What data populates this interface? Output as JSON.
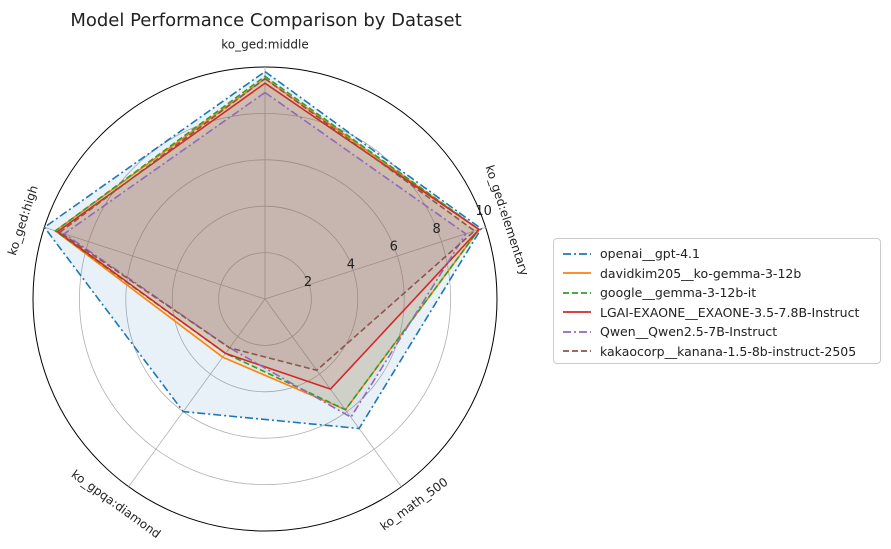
{
  "chart_data": {
    "type": "radar",
    "title": "Model Performance Comparison by Dataset",
    "axes": [
      "ko_ged:middle",
      "ko_ged:elementary",
      "ko_math_500",
      "ko_gpqa:diamond",
      "ko_ged:high"
    ],
    "rlim": [
      0,
      10
    ],
    "rticks": [
      2,
      4,
      6,
      8,
      10
    ],
    "grid": true,
    "legend_position": "right",
    "series": [
      {
        "name": "openai__gpt-4.1",
        "values": [
          9.8,
          9.8,
          6.9,
          6.0,
          10.0
        ],
        "color": "#1f77b4",
        "dash": "dashdot",
        "fill": true
      },
      {
        "name": "davidkim205__ko-gemma-3-12b",
        "values": [
          9.5,
          9.7,
          5.9,
          3.1,
          9.5
        ],
        "color": "#ff7f0e",
        "dash": "solid",
        "fill": true
      },
      {
        "name": "google__gemma-3-12b-it",
        "values": [
          9.6,
          9.7,
          5.9,
          2.9,
          9.5
        ],
        "color": "#2ca02c",
        "dash": "dashed",
        "fill": true
      },
      {
        "name": "LGAI-EXAONE__EXAONE-3.5-7.8B-Instruct",
        "values": [
          9.3,
          9.7,
          4.8,
          2.9,
          9.4
        ],
        "color": "#d62728",
        "dash": "solid",
        "fill": true
      },
      {
        "name": "Qwen__Qwen2.5-7B-Instruct",
        "values": [
          8.9,
          9.1,
          6.3,
          2.6,
          9.1
        ],
        "color": "#9467bd",
        "dash": "dashdot",
        "fill": true
      },
      {
        "name": "kakaocorp__kanana-1.5-8b-instruct-2505",
        "values": [
          9.5,
          9.5,
          3.8,
          2.6,
          9.3
        ],
        "color": "#8c564b",
        "dash": "dashed",
        "fill": true
      }
    ]
  }
}
